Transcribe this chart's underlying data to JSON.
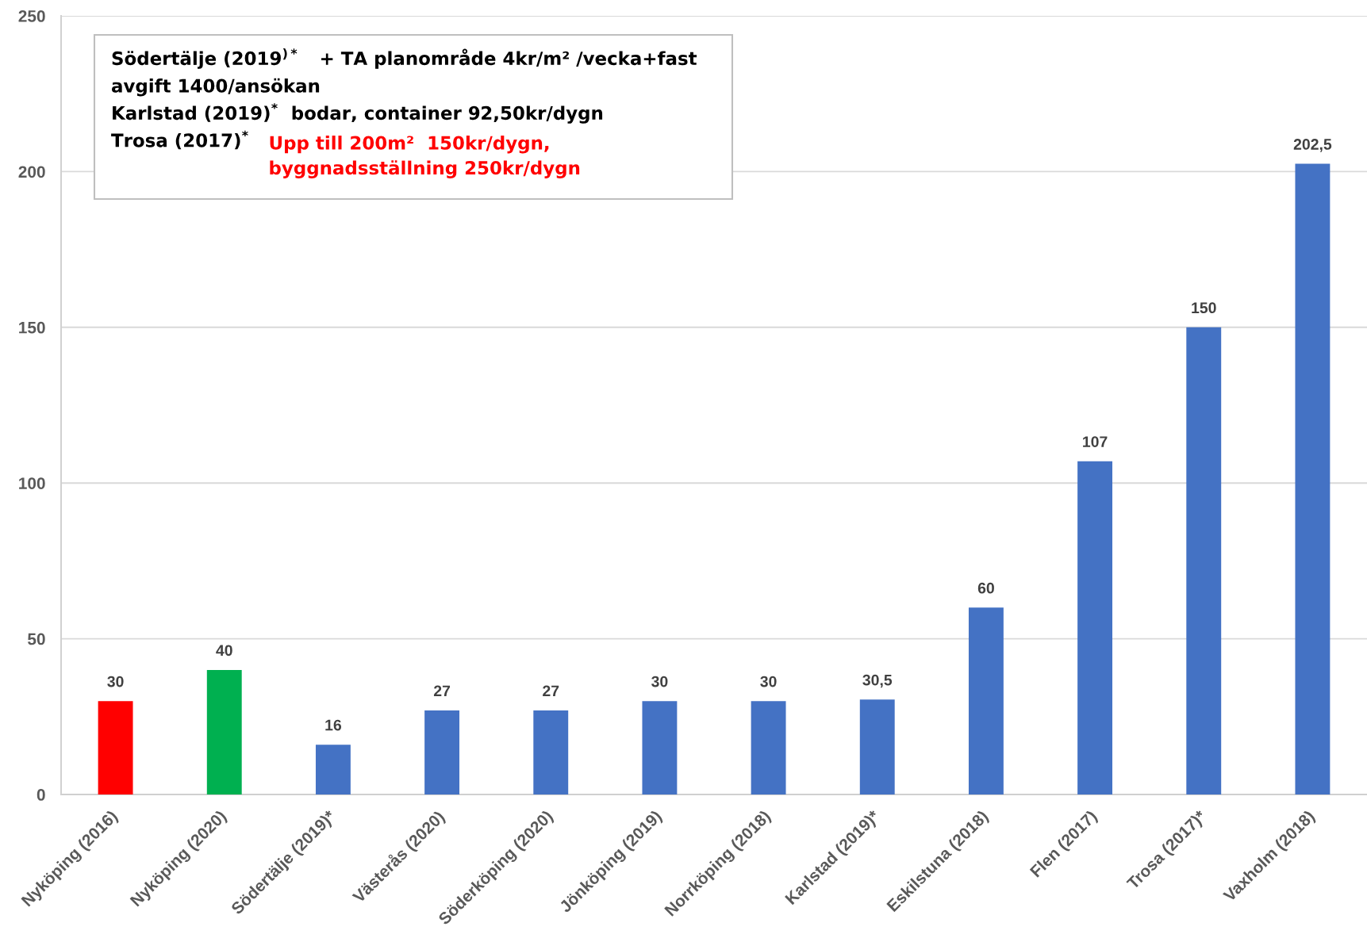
{
  "chart_data": {
    "type": "bar",
    "categories": [
      "Nyköping (2016)",
      "Nyköping (2020)",
      "Södertälje (2019)*",
      "Västerås (2020)",
      "Söderköping (2020)",
      "Jönköping (2019)",
      "Norrköping (2018)",
      "Karlstad (2019)*",
      "Eskilstuna (2018)",
      "Flen (2017)",
      "Trosa (2017)*",
      "Vaxholm (2018)"
    ],
    "values": [
      30,
      40,
      16,
      27,
      27,
      30,
      30,
      30.5,
      60,
      107,
      150,
      202.5
    ],
    "colors": [
      "#ff0000",
      "#00b050",
      "#4472c4",
      "#4472c4",
      "#4472c4",
      "#4472c4",
      "#4472c4",
      "#4472c4",
      "#4472c4",
      "#4472c4",
      "#4472c4",
      "#4472c4"
    ],
    "value_labels": [
      "30",
      "40",
      "16",
      "27",
      "27",
      "30",
      "30",
      "30,5",
      "60",
      "107",
      "150",
      "202,5"
    ],
    "ylim": [
      0,
      250
    ],
    "yticks": [
      0,
      50,
      100,
      150,
      200,
      250
    ],
    "grid": "y",
    "annotations": [
      "Södertälje (2019$^{)*}$   + TA planområde 4kr/m² /vecka+fast avgift 1400/ansökan",
      "Karlstad (2019)$^{*}$  bodar, container 92,50kr/dygn",
      "Trosa (2017)$^{*}$",
      "Upp till 200m²  150kr/dygn, byggnadsställning 250kr/dygn"
    ]
  }
}
